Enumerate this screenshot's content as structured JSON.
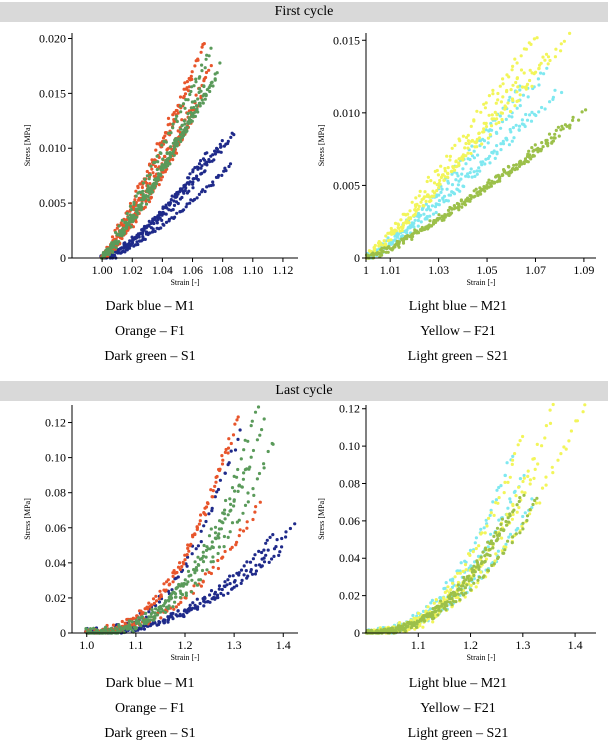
{
  "sections": {
    "first": "First cycle",
    "last": "Last cycle"
  },
  "legend_left": [
    "Dark blue – M1",
    "Orange – F1",
    "Dark green – S1"
  ],
  "legend_right": [
    "Light blue – M21",
    "Yellow – F21",
    "Light green – S21"
  ],
  "colors": {
    "M1": "#1f2a8a",
    "F1": "#e8552b",
    "S1": "#5a9a5a",
    "M21": "#7fe8f0",
    "F21": "#f2f55a",
    "S21": "#9cc04a"
  },
  "chart_data": [
    {
      "id": "first-left",
      "type": "scatter",
      "xlabel": "Strain [-]",
      "ylabel": "Stress [MPa]",
      "xlim": [
        0.98,
        1.13
      ],
      "ylim": [
        0,
        0.0205
      ],
      "xticks": [
        1.0,
        1.02,
        1.04,
        1.06,
        1.08,
        1.1,
        1.12
      ],
      "xtick_labels": [
        "1.00",
        "1.02",
        "1.04",
        "1.06",
        "1.08",
        "1.10",
        "1.12"
      ],
      "yticks": [
        0,
        0.005,
        0.01,
        0.015,
        0.02
      ],
      "ytick_labels": [
        "0",
        "0.005",
        "0.010",
        "0.015",
        "0.020"
      ],
      "series": [
        {
          "key": "M1",
          "curves": [
            [
              1.0,
              1.07,
              0.0095,
              1.4
            ],
            [
              1.0,
              1.08,
              0.0105,
              1.3
            ],
            [
              1.005,
              1.088,
              0.0115,
              1.3
            ],
            [
              1.0,
              1.085,
              0.0085,
              1.4
            ]
          ]
        },
        {
          "key": "F1",
          "curves": [
            [
              1.0,
              1.06,
              0.0165,
              1.2
            ],
            [
              1.0,
              1.068,
              0.0195,
              1.1
            ],
            [
              1.0,
              1.057,
              0.012,
              1.3
            ],
            [
              1.0,
              1.072,
              0.0175,
              1.2
            ],
            [
              1.0,
              1.066,
              0.0145,
              1.2
            ]
          ]
        },
        {
          "key": "S1",
          "curves": [
            [
              1.0,
              1.068,
              0.016,
              1.2
            ],
            [
              1.0,
              1.075,
              0.0163,
              1.1
            ],
            [
              1.0,
              1.072,
              0.019,
              1.1
            ],
            [
              1.0,
              1.062,
              0.0135,
              1.2
            ],
            [
              1.0,
              1.078,
              0.0175,
              1.2
            ]
          ]
        }
      ]
    },
    {
      "id": "first-right",
      "type": "scatter",
      "xlabel": "Strain [-]",
      "ylabel": "Stress [MPa]",
      "xlim": [
        1.0,
        1.095
      ],
      "ylim": [
        0,
        0.0155
      ],
      "xticks": [
        1.0,
        1.01,
        1.03,
        1.05,
        1.07,
        1.09
      ],
      "xtick_labels": [
        "1",
        "1.01",
        "1.03",
        "1.05",
        "1.07",
        "1.09"
      ],
      "yticks": [
        0,
        0.005,
        0.01,
        0.015
      ],
      "ytick_labels": [
        "0",
        "0.005",
        "0.010",
        "0.015"
      ],
      "series": [
        {
          "key": "M21",
          "curves": [
            [
              1.0,
              1.065,
              0.012,
              1.2
            ],
            [
              1.0,
              1.075,
              0.013,
              1.2
            ],
            [
              1.0,
              1.068,
              0.01,
              1.2
            ],
            [
              1.0,
              1.08,
              0.0115,
              1.2
            ]
          ]
        },
        {
          "key": "F21",
          "curves": [
            [
              1.0,
              1.07,
              0.0155,
              1.1
            ],
            [
              1.0,
              1.085,
              0.0155,
              1.1
            ],
            [
              1.0,
              1.075,
              0.014,
              1.1
            ],
            [
              1.0,
              1.065,
              0.013,
              1.2
            ]
          ]
        },
        {
          "key": "S21",
          "curves": [
            [
              1.0,
              1.09,
              0.01,
              1.2
            ],
            [
              1.0,
              1.08,
              0.0085,
              1.2
            ],
            [
              1.0,
              1.072,
              0.0075,
              1.2
            ],
            [
              1.0,
              1.085,
              0.0095,
              1.2
            ]
          ]
        }
      ]
    },
    {
      "id": "last-left",
      "type": "scatter",
      "xlabel": "Strain [-]",
      "ylabel": "Stress [MPa]",
      "xlim": [
        0.97,
        1.43
      ],
      "ylim": [
        0,
        0.13
      ],
      "xticks": [
        1.0,
        1.1,
        1.2,
        1.3,
        1.4
      ],
      "xtick_labels": [
        "1.0",
        "1.1",
        "1.2",
        "1.3",
        "1.4"
      ],
      "yticks": [
        0,
        0.02,
        0.04,
        0.06,
        0.08,
        0.1,
        0.12
      ],
      "ytick_labels": [
        "0",
        "0.02",
        "0.04",
        "0.06",
        "0.08",
        "0.10",
        "0.12"
      ],
      "series": [
        {
          "key": "M1",
          "curves": [
            [
              1.0,
              1.42,
              0.061,
              2.2
            ],
            [
              1.0,
              1.38,
              0.055,
              2.2
            ],
            [
              1.0,
              1.4,
              0.048,
              2.1
            ],
            [
              1.0,
              1.31,
              0.115,
              2.5
            ]
          ]
        },
        {
          "key": "F1",
          "curves": [
            [
              1.0,
              1.31,
              0.126,
              2.4
            ],
            [
              1.0,
              1.35,
              0.073,
              2.3
            ],
            [
              1.0,
              1.29,
              0.11,
              2.4
            ]
          ]
        },
        {
          "key": "S1",
          "curves": [
            [
              1.0,
              1.35,
              0.13,
              2.6
            ],
            [
              1.0,
              1.38,
              0.11,
              2.5
            ],
            [
              1.0,
              1.33,
              0.095,
              2.4
            ],
            [
              1.0,
              1.36,
              0.12,
              2.5
            ]
          ]
        }
      ]
    },
    {
      "id": "last-right",
      "type": "scatter",
      "xlabel": "Strain [-]",
      "ylabel": "Stress [MPa]",
      "xlim": [
        1.0,
        1.44
      ],
      "ylim": [
        0,
        0.122
      ],
      "xticks": [
        1.1,
        1.2,
        1.3,
        1.4
      ],
      "xtick_labels": [
        "1.1",
        "1.2",
        "1.3",
        "1.4"
      ],
      "yticks": [
        0,
        0.02,
        0.04,
        0.06,
        0.08,
        0.1,
        0.12
      ],
      "ytick_labels": [
        "0",
        "0.02",
        "0.04",
        "0.06",
        "0.08",
        "0.10",
        "0.12"
      ],
      "series": [
        {
          "key": "M21",
          "curves": [
            [
              1.0,
              1.28,
              0.095,
              2.3
            ],
            [
              1.0,
              1.3,
              0.085,
              2.2
            ],
            [
              1.0,
              1.32,
              0.07,
              2.2
            ]
          ]
        },
        {
          "key": "F21",
          "curves": [
            [
              1.0,
              1.36,
              0.122,
              2.3
            ],
            [
              1.0,
              1.42,
              0.122,
              2.2
            ],
            [
              1.0,
              1.3,
              0.105,
              2.3
            ],
            [
              1.0,
              1.33,
              0.09,
              2.2
            ]
          ]
        },
        {
          "key": "S21",
          "curves": [
            [
              1.0,
              1.3,
              0.075,
              2.3
            ],
            [
              1.0,
              1.28,
              0.065,
              2.3
            ],
            [
              1.0,
              1.33,
              0.072,
              2.2
            ],
            [
              1.0,
              1.26,
              0.06,
              2.3
            ]
          ]
        }
      ]
    }
  ]
}
